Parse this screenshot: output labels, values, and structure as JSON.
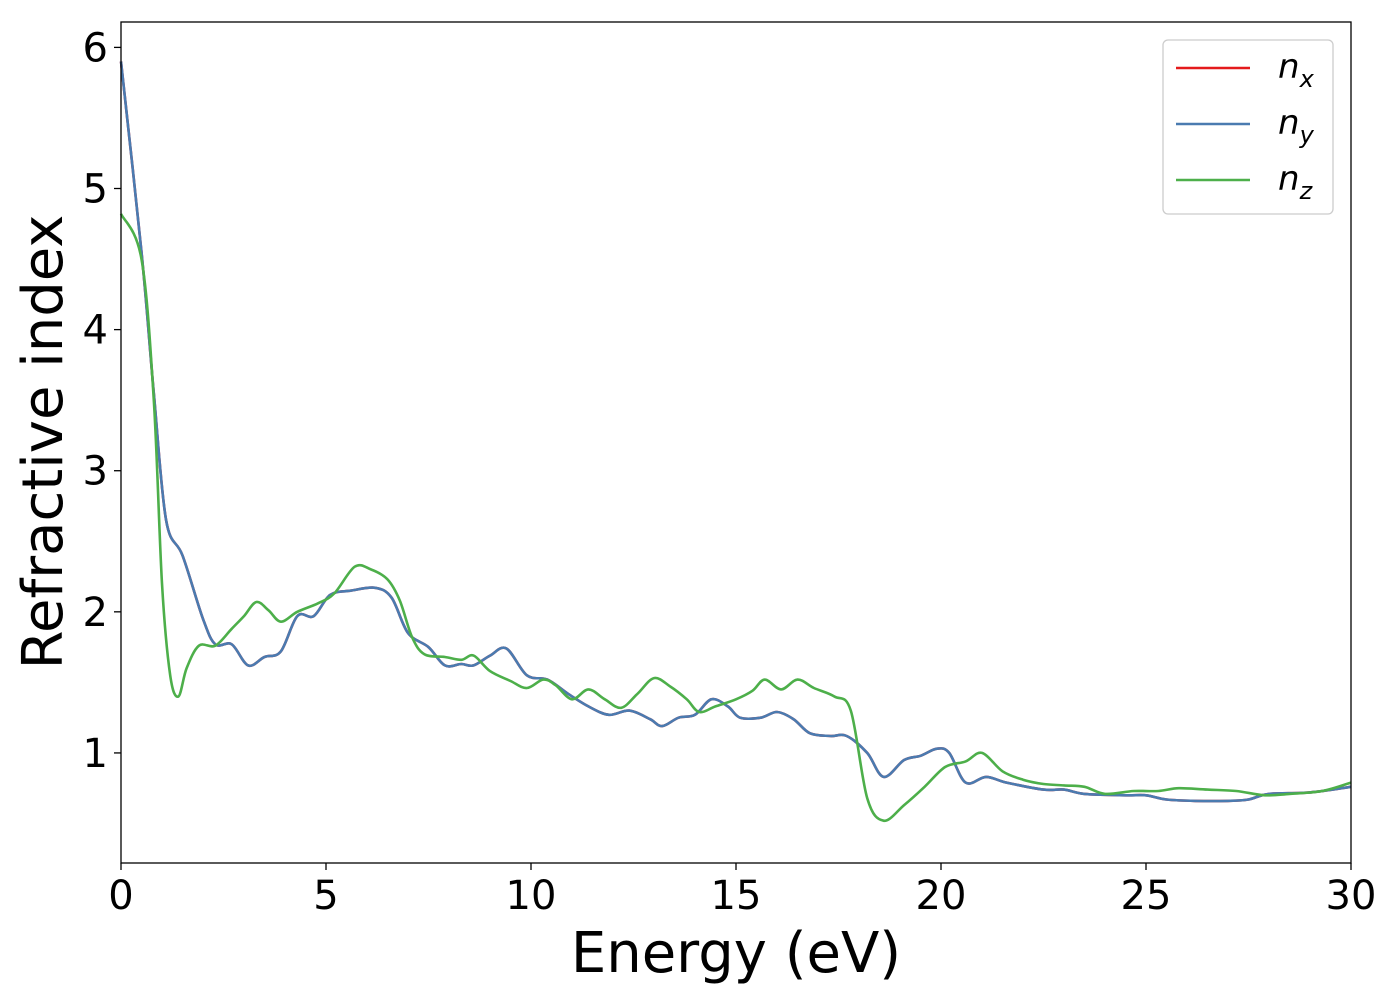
{
  "chart_data": {
    "type": "line",
    "xlabel": "Energy (eV)",
    "ylabel": "Refractive index",
    "xlim": [
      0,
      30
    ],
    "ylim": [
      0.22,
      6.18
    ],
    "x_ticks": [
      0,
      5,
      10,
      15,
      20,
      25,
      30
    ],
    "y_ticks": [
      1,
      2,
      3,
      4,
      5,
      6
    ],
    "grid": false,
    "legend_position": "top-right",
    "series": [
      {
        "name": "n_x",
        "label_base": "n",
        "label_sub": "x",
        "color": "#e41a1c",
        "values": [
          [
            0,
            5.9
          ],
          [
            0.5,
            4.55
          ],
          [
            0.8,
            3.55
          ],
          [
            1.1,
            2.65
          ],
          [
            1.5,
            2.4
          ],
          [
            2.0,
            1.95
          ],
          [
            2.3,
            1.77
          ],
          [
            2.7,
            1.77
          ],
          [
            3.1,
            1.62
          ],
          [
            3.5,
            1.68
          ],
          [
            3.9,
            1.72
          ],
          [
            4.3,
            1.97
          ],
          [
            4.7,
            1.97
          ],
          [
            5.1,
            2.12
          ],
          [
            5.6,
            2.15
          ],
          [
            6.2,
            2.17
          ],
          [
            6.6,
            2.1
          ],
          [
            7.0,
            1.85
          ],
          [
            7.5,
            1.75
          ],
          [
            7.9,
            1.62
          ],
          [
            8.3,
            1.63
          ],
          [
            8.6,
            1.62
          ],
          [
            9.0,
            1.69
          ],
          [
            9.4,
            1.74
          ],
          [
            9.9,
            1.55
          ],
          [
            10.4,
            1.52
          ],
          [
            10.9,
            1.42
          ],
          [
            11.4,
            1.33
          ],
          [
            11.9,
            1.27
          ],
          [
            12.4,
            1.3
          ],
          [
            12.9,
            1.24
          ],
          [
            13.2,
            1.19
          ],
          [
            13.6,
            1.25
          ],
          [
            14.0,
            1.27
          ],
          [
            14.4,
            1.38
          ],
          [
            14.8,
            1.33
          ],
          [
            15.1,
            1.25
          ],
          [
            15.6,
            1.25
          ],
          [
            16.0,
            1.29
          ],
          [
            16.4,
            1.24
          ],
          [
            16.8,
            1.14
          ],
          [
            17.3,
            1.12
          ],
          [
            17.7,
            1.12
          ],
          [
            18.2,
            1.0
          ],
          [
            18.6,
            0.83
          ],
          [
            19.1,
            0.95
          ],
          [
            19.5,
            0.98
          ],
          [
            19.9,
            1.03
          ],
          [
            20.2,
            1.0
          ],
          [
            20.6,
            0.79
          ],
          [
            21.1,
            0.83
          ],
          [
            21.6,
            0.79
          ],
          [
            22.5,
            0.74
          ],
          [
            23.0,
            0.74
          ],
          [
            23.5,
            0.71
          ],
          [
            24.5,
            0.7
          ],
          [
            25.0,
            0.7
          ],
          [
            25.5,
            0.67
          ],
          [
            26.2,
            0.66
          ],
          [
            27.0,
            0.66
          ],
          [
            27.5,
            0.67
          ],
          [
            28.0,
            0.71
          ],
          [
            29.0,
            0.72
          ],
          [
            30.0,
            0.76
          ]
        ]
      },
      {
        "name": "n_y",
        "label_base": "n",
        "label_sub": "y",
        "color": "#4a7bb0",
        "values": [
          [
            0,
            5.9
          ],
          [
            0.5,
            4.55
          ],
          [
            0.8,
            3.55
          ],
          [
            1.1,
            2.65
          ],
          [
            1.5,
            2.4
          ],
          [
            2.0,
            1.95
          ],
          [
            2.3,
            1.77
          ],
          [
            2.7,
            1.77
          ],
          [
            3.1,
            1.62
          ],
          [
            3.5,
            1.68
          ],
          [
            3.9,
            1.72
          ],
          [
            4.3,
            1.97
          ],
          [
            4.7,
            1.97
          ],
          [
            5.1,
            2.12
          ],
          [
            5.6,
            2.15
          ],
          [
            6.2,
            2.17
          ],
          [
            6.6,
            2.1
          ],
          [
            7.0,
            1.85
          ],
          [
            7.5,
            1.75
          ],
          [
            7.9,
            1.62
          ],
          [
            8.3,
            1.63
          ],
          [
            8.6,
            1.62
          ],
          [
            9.0,
            1.69
          ],
          [
            9.4,
            1.74
          ],
          [
            9.9,
            1.55
          ],
          [
            10.4,
            1.52
          ],
          [
            10.9,
            1.42
          ],
          [
            11.4,
            1.33
          ],
          [
            11.9,
            1.27
          ],
          [
            12.4,
            1.3
          ],
          [
            12.9,
            1.24
          ],
          [
            13.2,
            1.19
          ],
          [
            13.6,
            1.25
          ],
          [
            14.0,
            1.27
          ],
          [
            14.4,
            1.38
          ],
          [
            14.8,
            1.33
          ],
          [
            15.1,
            1.25
          ],
          [
            15.6,
            1.25
          ],
          [
            16.0,
            1.29
          ],
          [
            16.4,
            1.24
          ],
          [
            16.8,
            1.14
          ],
          [
            17.3,
            1.12
          ],
          [
            17.7,
            1.12
          ],
          [
            18.2,
            1.0
          ],
          [
            18.6,
            0.83
          ],
          [
            19.1,
            0.95
          ],
          [
            19.5,
            0.98
          ],
          [
            19.9,
            1.03
          ],
          [
            20.2,
            1.0
          ],
          [
            20.6,
            0.79
          ],
          [
            21.1,
            0.83
          ],
          [
            21.6,
            0.79
          ],
          [
            22.5,
            0.74
          ],
          [
            23.0,
            0.74
          ],
          [
            23.5,
            0.71
          ],
          [
            24.5,
            0.7
          ],
          [
            25.0,
            0.7
          ],
          [
            25.5,
            0.67
          ],
          [
            26.2,
            0.66
          ],
          [
            27.0,
            0.66
          ],
          [
            27.5,
            0.67
          ],
          [
            28.0,
            0.71
          ],
          [
            29.0,
            0.72
          ],
          [
            30.0,
            0.76
          ]
        ]
      },
      {
        "name": "n_z",
        "label_base": "n",
        "label_sub": "z",
        "color": "#4daf4a",
        "values": [
          [
            0,
            4.82
          ],
          [
            0.5,
            4.5
          ],
          [
            0.8,
            3.5
          ],
          [
            1.0,
            2.2
          ],
          [
            1.2,
            1.55
          ],
          [
            1.4,
            1.4
          ],
          [
            1.6,
            1.6
          ],
          [
            1.9,
            1.76
          ],
          [
            2.3,
            1.76
          ],
          [
            2.7,
            1.88
          ],
          [
            3.0,
            1.97
          ],
          [
            3.3,
            2.07
          ],
          [
            3.6,
            2.01
          ],
          [
            3.9,
            1.93
          ],
          [
            4.3,
            2.0
          ],
          [
            4.8,
            2.06
          ],
          [
            5.2,
            2.13
          ],
          [
            5.7,
            2.32
          ],
          [
            6.1,
            2.3
          ],
          [
            6.5,
            2.23
          ],
          [
            6.8,
            2.08
          ],
          [
            7.1,
            1.82
          ],
          [
            7.4,
            1.7
          ],
          [
            7.9,
            1.68
          ],
          [
            8.3,
            1.66
          ],
          [
            8.6,
            1.69
          ],
          [
            9.0,
            1.58
          ],
          [
            9.5,
            1.51
          ],
          [
            9.9,
            1.46
          ],
          [
            10.3,
            1.52
          ],
          [
            10.6,
            1.48
          ],
          [
            11.0,
            1.38
          ],
          [
            11.4,
            1.45
          ],
          [
            11.8,
            1.38
          ],
          [
            12.2,
            1.32
          ],
          [
            12.6,
            1.42
          ],
          [
            13.0,
            1.53
          ],
          [
            13.4,
            1.47
          ],
          [
            13.8,
            1.38
          ],
          [
            14.1,
            1.29
          ],
          [
            14.5,
            1.33
          ],
          [
            15.0,
            1.38
          ],
          [
            15.4,
            1.44
          ],
          [
            15.7,
            1.52
          ],
          [
            16.1,
            1.45
          ],
          [
            16.5,
            1.52
          ],
          [
            16.9,
            1.46
          ],
          [
            17.4,
            1.4
          ],
          [
            17.8,
            1.3
          ],
          [
            18.2,
            0.68
          ],
          [
            18.6,
            0.52
          ],
          [
            19.1,
            0.63
          ],
          [
            19.6,
            0.76
          ],
          [
            20.1,
            0.9
          ],
          [
            20.6,
            0.94
          ],
          [
            21.0,
            1.0
          ],
          [
            21.5,
            0.87
          ],
          [
            22.0,
            0.81
          ],
          [
            22.5,
            0.78
          ],
          [
            23.0,
            0.77
          ],
          [
            23.5,
            0.76
          ],
          [
            24.0,
            0.71
          ],
          [
            24.7,
            0.73
          ],
          [
            25.3,
            0.73
          ],
          [
            25.8,
            0.75
          ],
          [
            26.5,
            0.74
          ],
          [
            27.2,
            0.73
          ],
          [
            27.9,
            0.7
          ],
          [
            28.5,
            0.71
          ],
          [
            29.3,
            0.73
          ],
          [
            30.0,
            0.79
          ]
        ]
      }
    ]
  }
}
